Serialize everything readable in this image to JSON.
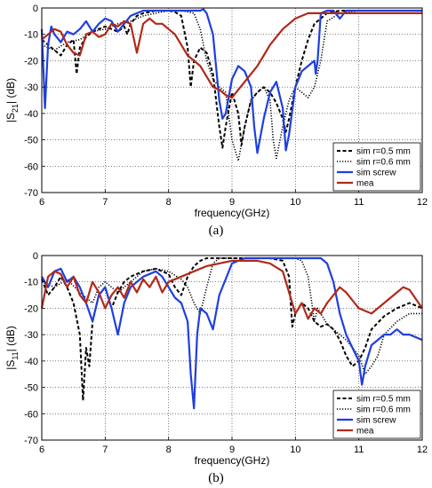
{
  "chart_data": [
    {
      "type": "line",
      "panel_label": "(a)",
      "xlabel": "frequency(GHz)",
      "ylabel_main": "|S",
      "ylabel_sub": "21",
      "ylabel_tail": "| (dB)",
      "xlim": [
        6,
        12
      ],
      "ylim": [
        -70,
        0
      ],
      "xticks": [
        "6",
        "7",
        "8",
        "9",
        "10",
        "11",
        "12"
      ],
      "yticks": [
        "0",
        "-10",
        "-20",
        "-30",
        "-40",
        "-50",
        "-60",
        "-70"
      ],
      "grid": true,
      "legend_position": "lower-right",
      "series": [
        {
          "name": "sim r=0.5 mm",
          "color": "#000000",
          "dash": "dashed",
          "x": [
            6.0,
            6.1,
            6.2,
            6.3,
            6.4,
            6.5,
            6.55,
            6.6,
            6.7,
            6.8,
            7.0,
            7.1,
            7.2,
            7.3,
            7.35,
            7.4,
            7.5,
            7.6,
            7.7,
            7.8,
            7.9,
            8.0,
            8.1,
            8.2,
            8.3,
            8.35,
            8.4,
            8.5,
            8.6,
            8.7,
            8.8,
            8.85,
            8.9,
            9.0,
            9.1,
            9.15,
            9.2,
            9.3,
            9.4,
            9.5,
            9.6,
            9.7,
            9.8,
            9.85,
            9.9,
            10.0,
            10.1,
            10.2,
            10.3,
            10.5,
            10.7,
            11.0,
            11.5,
            12.0
          ],
          "y": [
            -12,
            -14,
            -16,
            -18,
            -14,
            -12,
            -25,
            -15,
            -11,
            -9,
            -7,
            -8,
            -9,
            -7,
            -10,
            -6,
            -3,
            -2,
            -1.5,
            -1,
            -1,
            -1,
            -1.5,
            -3,
            -15,
            -30,
            -20,
            -15,
            -17,
            -25,
            -45,
            -53,
            -45,
            -32,
            -40,
            -52,
            -45,
            -35,
            -32,
            -30,
            -32,
            -36,
            -42,
            -47,
            -42,
            -30,
            -20,
            -12,
            -6,
            -2,
            -1,
            -1,
            -1,
            -1
          ]
        },
        {
          "name": "sim r=0.6 mm",
          "color": "#000000",
          "dash": "dotted",
          "x": [
            6.0,
            6.2,
            6.4,
            6.6,
            6.8,
            7.0,
            7.2,
            7.4,
            7.6,
            7.8,
            8.0,
            8.2,
            8.4,
            8.5,
            8.6,
            8.7,
            8.8,
            8.9,
            9.0,
            9.1,
            9.2,
            9.3,
            9.4,
            9.5,
            9.6,
            9.65,
            9.7,
            9.8,
            9.9,
            10.0,
            10.1,
            10.2,
            10.3,
            10.4,
            10.5,
            10.7,
            11.0,
            11.5,
            12.0
          ],
          "y": [
            -14,
            -16,
            -13,
            -12,
            -9,
            -8,
            -6,
            -5,
            -3,
            -2,
            -1,
            -1,
            -2,
            -8,
            -20,
            -27,
            -30,
            -32,
            -50,
            -58,
            -45,
            -35,
            -32,
            -30,
            -35,
            -50,
            -57,
            -45,
            -35,
            -30,
            -32,
            -34,
            -30,
            -20,
            -5,
            -2,
            -1,
            -1,
            -1
          ]
        },
        {
          "name": "sim screw",
          "color": "#1f3fe0",
          "dash": "solid",
          "x": [
            6.0,
            6.05,
            6.1,
            6.15,
            6.2,
            6.3,
            6.4,
            6.5,
            6.6,
            6.7,
            6.8,
            6.9,
            7.0,
            7.1,
            7.2,
            7.3,
            7.4,
            7.5,
            7.6,
            7.8,
            8.0,
            8.2,
            8.4,
            8.5,
            8.55,
            8.6,
            8.7,
            8.8,
            8.85,
            8.9,
            9.0,
            9.1,
            9.2,
            9.3,
            9.35,
            9.4,
            9.5,
            9.6,
            9.7,
            9.8,
            9.85,
            9.9,
            10.0,
            10.1,
            10.2,
            10.3,
            10.32,
            10.35,
            10.4,
            10.5,
            10.6,
            10.7,
            10.8,
            11.0,
            11.5,
            12.0
          ],
          "y": [
            -8,
            -38,
            -14,
            -7,
            -10,
            -13,
            -9,
            -10,
            -8,
            -5,
            -9,
            -6,
            -4,
            -5,
            -9,
            -6,
            -3,
            -2,
            -1,
            -1,
            -1,
            -1,
            -1,
            -1,
            -0.5,
            -2,
            -10,
            -35,
            -42,
            -40,
            -27,
            -22,
            -24,
            -30,
            -45,
            -55,
            -42,
            -32,
            -28,
            -38,
            -54,
            -48,
            -30,
            -24,
            -22,
            -20,
            -25,
            -20,
            -2,
            -1,
            -1,
            -4,
            -1,
            -1,
            -1,
            -1
          ]
        },
        {
          "name": "mea",
          "color": "#b02a1a",
          "dash": "solid",
          "x": [
            6.0,
            6.1,
            6.2,
            6.3,
            6.4,
            6.5,
            6.6,
            6.7,
            6.8,
            6.9,
            7.0,
            7.1,
            7.2,
            7.3,
            7.4,
            7.5,
            7.6,
            7.7,
            7.8,
            7.9,
            8.0,
            8.1,
            8.2,
            8.3,
            8.4,
            8.5,
            8.6,
            8.7,
            8.8,
            8.9,
            9.0,
            9.1,
            9.2,
            9.3,
            9.4,
            9.5,
            9.6,
            9.7,
            9.8,
            9.9,
            10.0,
            10.2,
            10.4,
            10.6,
            10.8,
            11.0,
            11.5,
            12.0
          ],
          "y": [
            -12,
            -10,
            -8,
            -9,
            -14,
            -17,
            -18,
            -10,
            -9,
            -11,
            -10,
            -6,
            -7,
            -5,
            -6,
            -17,
            -6,
            -4,
            -6,
            -6,
            -8,
            -10,
            -14,
            -18,
            -20,
            -22,
            -26,
            -30,
            -31,
            -33,
            -34,
            -31,
            -28,
            -25,
            -22,
            -18,
            -14,
            -11,
            -8,
            -6,
            -4,
            -2,
            -2,
            -2,
            -2,
            -2,
            -2,
            -2
          ]
        }
      ]
    },
    {
      "type": "line",
      "panel_label": "(b)",
      "xlabel": "frequency(GHz)",
      "ylabel_main": "|S",
      "ylabel_sub": "11",
      "ylabel_tail": "| (dB)",
      "xlim": [
        6,
        12
      ],
      "ylim": [
        -70,
        0
      ],
      "xticks": [
        "6",
        "7",
        "8",
        "9",
        "10",
        "11",
        "12"
      ],
      "yticks": [
        "0",
        "-10",
        "-20",
        "-30",
        "-40",
        "-50",
        "-60",
        "-70"
      ],
      "grid": true,
      "legend_position": "lower-right",
      "series": [
        {
          "name": "sim r=0.5 mm",
          "color": "#000000",
          "dash": "dashed",
          "x": [
            6.0,
            6.1,
            6.2,
            6.3,
            6.4,
            6.5,
            6.6,
            6.65,
            6.7,
            6.75,
            6.8,
            6.9,
            7.0,
            7.1,
            7.2,
            7.3,
            7.4,
            7.6,
            7.8,
            8.0,
            8.1,
            8.2,
            8.3,
            8.4,
            8.5,
            8.6,
            8.8,
            9.0,
            9.2,
            9.4,
            9.6,
            9.8,
            9.9,
            9.95,
            10.0,
            10.1,
            10.2,
            10.3,
            10.4,
            10.5,
            10.6,
            10.7,
            10.8,
            10.9,
            11.0,
            11.1,
            11.2,
            11.4,
            11.6,
            11.8,
            12.0
          ],
          "y": [
            -9,
            -15,
            -12,
            -8,
            -12,
            -18,
            -30,
            -55,
            -35,
            -42,
            -25,
            -15,
            -12,
            -20,
            -14,
            -10,
            -8,
            -6,
            -5,
            -7,
            -12,
            -15,
            -8,
            -4,
            -2,
            -1,
            -1,
            -1,
            -1,
            -1,
            -1,
            -2,
            -8,
            -27,
            -22,
            -18,
            -20,
            -25,
            -27,
            -26,
            -28,
            -32,
            -38,
            -42,
            -40,
            -35,
            -28,
            -23,
            -20,
            -18,
            -20
          ]
        },
        {
          "name": "sim r=0.6 mm",
          "color": "#000000",
          "dash": "dotted",
          "x": [
            6.0,
            6.2,
            6.4,
            6.6,
            6.8,
            6.9,
            7.0,
            7.2,
            7.4,
            7.6,
            7.8,
            8.0,
            8.2,
            8.3,
            8.4,
            8.5,
            8.6,
            8.7,
            8.8,
            9.0,
            9.2,
            9.4,
            9.6,
            9.8,
            10.0,
            10.1,
            10.2,
            10.3,
            10.35,
            10.4,
            10.5,
            10.6,
            10.7,
            10.8,
            10.9,
            11.0,
            11.1,
            11.2,
            11.3,
            11.4,
            11.6,
            11.8,
            12.0
          ],
          "y": [
            -10,
            -12,
            -9,
            -14,
            -18,
            -12,
            -10,
            -14,
            -10,
            -6,
            -5,
            -6,
            -9,
            -12,
            -18,
            -22,
            -12,
            -3,
            -1,
            -1,
            -1,
            -1,
            -1,
            -1,
            -1,
            -2,
            -8,
            -25,
            -20,
            -22,
            -26,
            -28,
            -30,
            -32,
            -35,
            -38,
            -45,
            -42,
            -38,
            -30,
            -25,
            -22,
            -22
          ]
        },
        {
          "name": "sim screw",
          "color": "#1f3fe0",
          "dash": "solid",
          "x": [
            6.0,
            6.1,
            6.2,
            6.3,
            6.4,
            6.5,
            6.6,
            6.7,
            6.8,
            6.9,
            7.0,
            7.1,
            7.2,
            7.3,
            7.4,
            7.5,
            7.6,
            7.7,
            7.8,
            7.9,
            8.0,
            8.1,
            8.2,
            8.3,
            8.35,
            8.4,
            8.45,
            8.5,
            8.6,
            8.7,
            8.8,
            9.0,
            9.2,
            9.4,
            9.6,
            9.8,
            10.0,
            10.2,
            10.4,
            10.5,
            10.6,
            10.7,
            10.8,
            10.9,
            11.0,
            11.05,
            11.1,
            11.2,
            11.3,
            11.4,
            11.5,
            11.6,
            11.7,
            11.8,
            11.9,
            12.0
          ],
          "y": [
            -8,
            -12,
            -6,
            -5,
            -10,
            -8,
            -12,
            -18,
            -25,
            -15,
            -12,
            -20,
            -30,
            -18,
            -12,
            -10,
            -8,
            -7,
            -6,
            -8,
            -12,
            -16,
            -18,
            -25,
            -45,
            -58,
            -30,
            -20,
            -22,
            -28,
            -15,
            -3,
            -1,
            -1,
            -1,
            -1,
            -1,
            -1,
            -1,
            -3,
            -10,
            -22,
            -30,
            -35,
            -40,
            -49,
            -42,
            -34,
            -32,
            -30,
            -30,
            -28,
            -30,
            -30,
            -31,
            -32
          ]
        },
        {
          "name": "mea",
          "color": "#b02a1a",
          "dash": "solid",
          "x": [
            6.0,
            6.1,
            6.2,
            6.3,
            6.4,
            6.5,
            6.6,
            6.7,
            6.8,
            6.9,
            7.0,
            7.1,
            7.2,
            7.3,
            7.4,
            7.5,
            7.6,
            7.7,
            7.8,
            7.9,
            8.0,
            8.2,
            8.4,
            8.6,
            8.8,
            9.0,
            9.2,
            9.4,
            9.6,
            9.8,
            9.9,
            10.0,
            10.1,
            10.2,
            10.3,
            10.4,
            10.5,
            10.6,
            10.7,
            10.8,
            10.9,
            11.0,
            11.2,
            11.4,
            11.6,
            11.7,
            11.8,
            12.0
          ],
          "y": [
            -20,
            -8,
            -6,
            -7,
            -12,
            -8,
            -15,
            -18,
            -10,
            -14,
            -20,
            -15,
            -12,
            -16,
            -10,
            -14,
            -9,
            -12,
            -8,
            -14,
            -10,
            -8,
            -6,
            -4,
            -3,
            -2,
            -2,
            -2,
            -3,
            -6,
            -14,
            -22,
            -18,
            -24,
            -20,
            -22,
            -18,
            -15,
            -12,
            -14,
            -17,
            -20,
            -22,
            -18,
            -14,
            -12,
            -13,
            -20
          ]
        }
      ]
    }
  ]
}
